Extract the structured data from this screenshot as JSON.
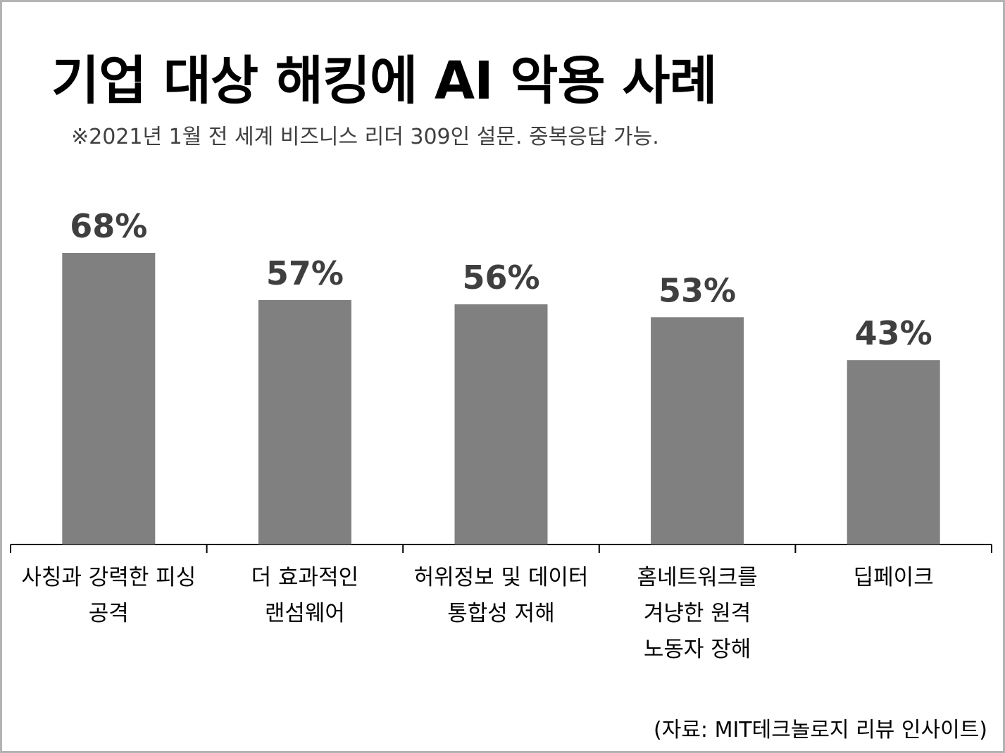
{
  "title": "기업 대상 해킹에 AI 악용 사례",
  "subtitle": "※2021년 1월 전 세계 비즈니스 리더 309인 설문. 중복응답 가능.",
  "source": "(자료: MIT테크놀로지 리뷰 인사이트)",
  "colors": {
    "bar": "#808080",
    "value_label": "#3f3f3f",
    "axis": "#000000",
    "border": "#b3b3b3"
  },
  "chart_data": {
    "type": "bar",
    "title": "기업 대상 해킹에 AI 악용 사례",
    "subtitle": "※2021년 1월 전 세계 비즈니스 리더 309인 설문. 중복응답 가능.",
    "categories": [
      [
        "사칭과 강력한 피싱",
        "공격"
      ],
      [
        "더 효과적인",
        "랜섬웨어"
      ],
      [
        "허위정보 및 데이터",
        "통합성 저해"
      ],
      [
        "홈네트워크를",
        "겨냥한 원격",
        "노동자 장해"
      ],
      [
        "딥페이크"
      ]
    ],
    "values": [
      68,
      57,
      56,
      53,
      43
    ],
    "value_labels": [
      "68%",
      "57%",
      "56%",
      "53%",
      "43%"
    ],
    "unit": "%",
    "ylim": [
      0,
      68
    ],
    "grid": false,
    "legend": "none"
  }
}
